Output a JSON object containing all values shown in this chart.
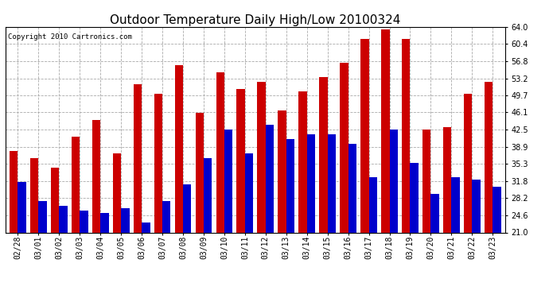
{
  "title": "Outdoor Temperature Daily High/Low 20100324",
  "copyright": "Copyright 2010 Cartronics.com",
  "dates": [
    "02/28",
    "03/01",
    "03/02",
    "03/03",
    "03/04",
    "03/05",
    "03/06",
    "03/07",
    "03/08",
    "03/09",
    "03/10",
    "03/11",
    "03/12",
    "03/13",
    "03/14",
    "03/15",
    "03/16",
    "03/17",
    "03/18",
    "03/19",
    "03/20",
    "03/21",
    "03/22",
    "03/23"
  ],
  "highs": [
    38.0,
    36.5,
    34.5,
    41.0,
    44.5,
    37.5,
    52.0,
    50.0,
    56.0,
    46.0,
    54.5,
    51.0,
    52.5,
    46.5,
    50.5,
    53.5,
    56.5,
    61.5,
    63.5,
    61.5,
    42.5,
    43.0,
    50.0,
    52.5
  ],
  "lows": [
    31.5,
    27.5,
    26.5,
    25.5,
    25.0,
    26.0,
    23.0,
    27.5,
    31.0,
    36.5,
    42.5,
    37.5,
    43.5,
    40.5,
    41.5,
    41.5,
    39.5,
    32.5,
    42.5,
    35.5,
    29.0,
    32.5,
    32.0,
    30.5
  ],
  "high_color": "#cc0000",
  "low_color": "#0000cc",
  "bg_color": "#ffffff",
  "grid_color": "#aaaaaa",
  "ylim": [
    21.0,
    64.0
  ],
  "yticks": [
    21.0,
    24.6,
    28.2,
    31.8,
    35.3,
    38.9,
    42.5,
    46.1,
    49.7,
    53.2,
    56.8,
    60.4,
    64.0
  ],
  "bar_width": 0.4,
  "title_fontsize": 11,
  "tick_fontsize": 7,
  "copyright_fontsize": 6.5
}
